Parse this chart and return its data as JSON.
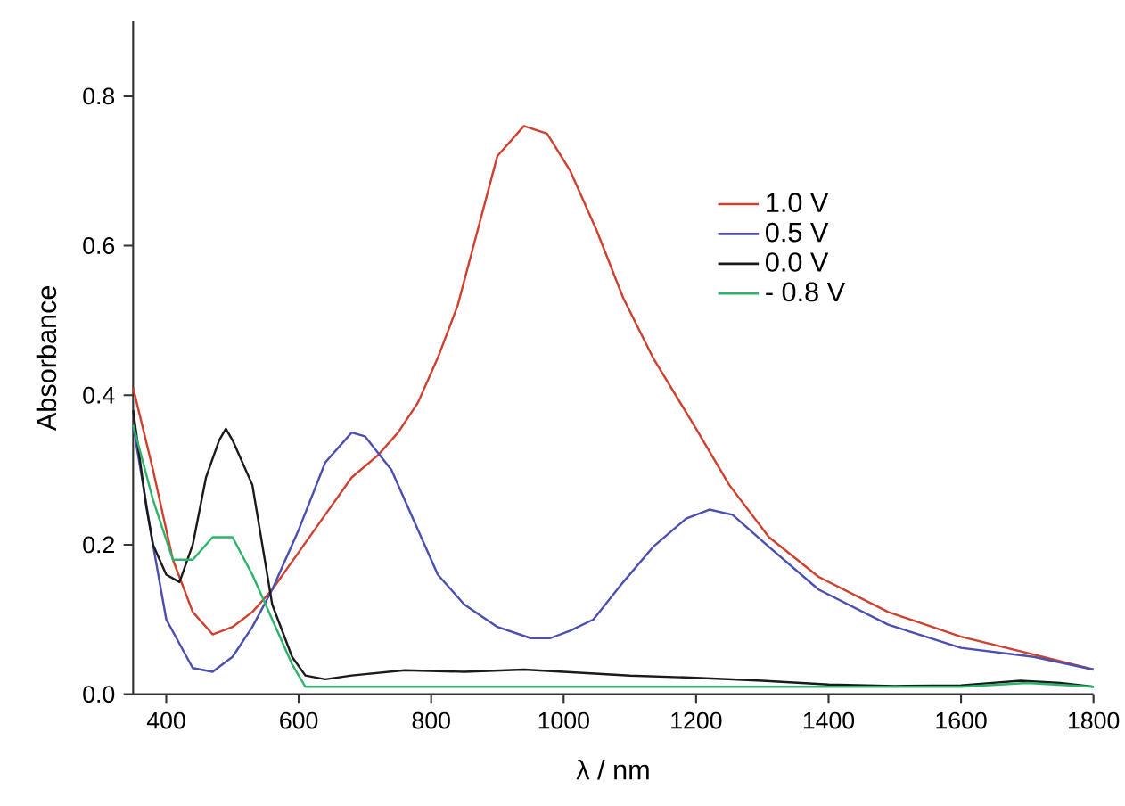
{
  "chart_data": {
    "type": "line",
    "xlabel": "λ / nm",
    "ylabel": "Absorbance",
    "xlim": [
      350,
      1800
    ],
    "ylim": [
      0,
      0.9
    ],
    "xticks": [
      400,
      600,
      800,
      1000,
      1200,
      1400,
      1600,
      1800
    ],
    "yticks": [
      {
        "value": 0,
        "label": "0.0"
      },
      {
        "value": 0.2,
        "label": "0.2"
      },
      {
        "value": 0.4,
        "label": "0.4"
      },
      {
        "value": 0.6,
        "label": "0.6"
      },
      {
        "value": 0.8,
        "label": "0.8"
      }
    ],
    "legend": "top right",
    "line_style": "solid",
    "series": [
      {
        "name": "1.0 V",
        "color": "#d0402e",
        "x": [
          350,
          380,
          410,
          440,
          470,
          500,
          530,
          560,
          600,
          640,
          680,
          720,
          750,
          780,
          810,
          840,
          870,
          900,
          940,
          975,
          1010,
          1050,
          1090,
          1135,
          1200,
          1250,
          1310,
          1385,
          1490,
          1600,
          1710,
          1800
        ],
        "values": [
          0.41,
          0.3,
          0.18,
          0.11,
          0.08,
          0.09,
          0.11,
          0.14,
          0.19,
          0.24,
          0.29,
          0.32,
          0.35,
          0.39,
          0.45,
          0.52,
          0.62,
          0.72,
          0.76,
          0.75,
          0.7,
          0.62,
          0.53,
          0.45,
          0.355,
          0.28,
          0.21,
          0.157,
          0.11,
          0.077,
          0.053,
          0.033
        ]
      },
      {
        "name": "0.5 V",
        "color": "#4a4fb0",
        "x": [
          350,
          380,
          400,
          440,
          470,
          500,
          530,
          560,
          600,
          640,
          680,
          700,
          740,
          780,
          810,
          850,
          900,
          950,
          980,
          1010,
          1045,
          1090,
          1135,
          1185,
          1220,
          1255,
          1310,
          1385,
          1490,
          1600,
          1710,
          1800
        ],
        "values": [
          0.36,
          0.2,
          0.1,
          0.035,
          0.03,
          0.05,
          0.09,
          0.14,
          0.22,
          0.31,
          0.35,
          0.345,
          0.3,
          0.22,
          0.16,
          0.12,
          0.09,
          0.075,
          0.075,
          0.085,
          0.1,
          0.15,
          0.197,
          0.235,
          0.247,
          0.24,
          0.197,
          0.14,
          0.093,
          0.062,
          0.05,
          0.033
        ]
      },
      {
        "name": "0.0 V",
        "color": "#1a1a1a",
        "x": [
          350,
          370,
          380,
          400,
          420,
          440,
          460,
          480,
          490,
          500,
          530,
          560,
          590,
          610,
          640,
          680,
          760,
          850,
          940,
          1000,
          1100,
          1200,
          1300,
          1400,
          1500,
          1600,
          1690,
          1750,
          1800
        ],
        "values": [
          0.38,
          0.25,
          0.2,
          0.16,
          0.15,
          0.2,
          0.29,
          0.34,
          0.355,
          0.34,
          0.28,
          0.12,
          0.05,
          0.025,
          0.02,
          0.025,
          0.032,
          0.03,
          0.033,
          0.03,
          0.025,
          0.022,
          0.018,
          0.013,
          0.011,
          0.012,
          0.018,
          0.015,
          0.01
        ]
      },
      {
        "name": "- 0.8 V",
        "color": "#2db36a",
        "x": [
          350,
          380,
          410,
          440,
          470,
          500,
          530,
          560,
          590,
          610,
          700,
          1400,
          1500,
          1600,
          1700,
          1800
        ],
        "values": [
          0.36,
          0.26,
          0.18,
          0.18,
          0.21,
          0.21,
          0.16,
          0.1,
          0.04,
          0.01,
          0.01,
          0.01,
          0.01,
          0.01,
          0.015,
          0.01
        ]
      }
    ]
  }
}
